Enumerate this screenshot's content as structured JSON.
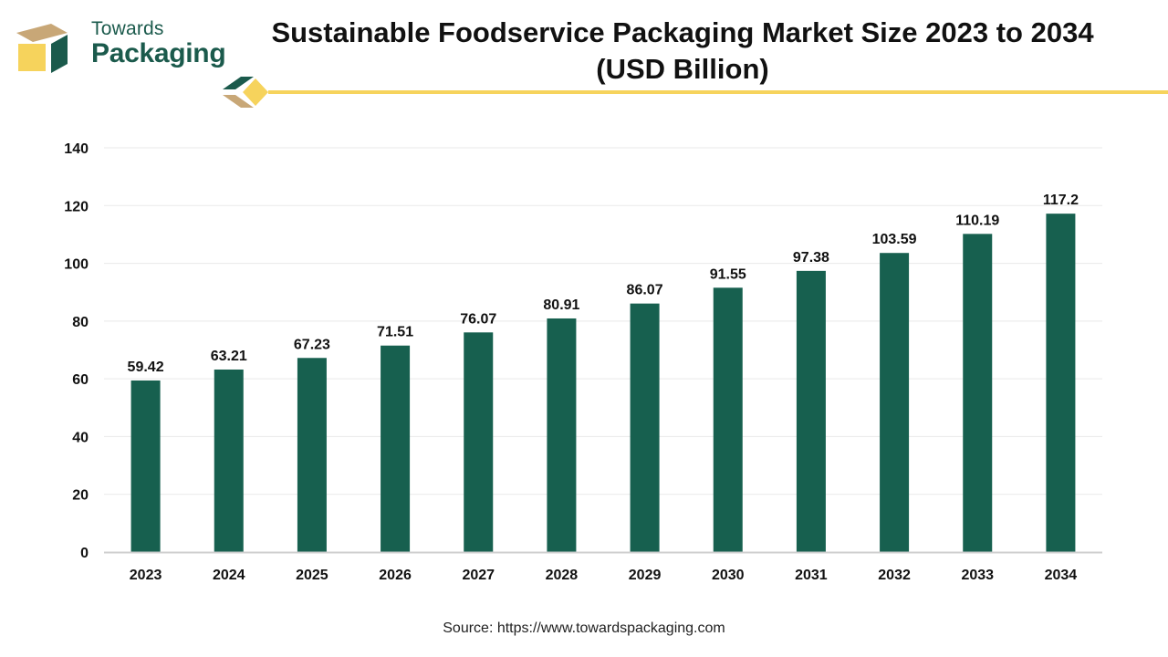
{
  "logo": {
    "line1": "Towards",
    "line2": "Packaging",
    "colors": {
      "green": "#1b5a4c",
      "gold": "#f6d35c",
      "tan": "#c8a777"
    }
  },
  "accent_line_color": "#f6d35c",
  "bar_color": "#17604f",
  "source": "Source: https://www.towardspackaging.com",
  "chart_data": {
    "type": "bar",
    "title": "Sustainable Foodservice Packaging Market Size 2023 to 2034 (USD Billion)",
    "title_lines": [
      "Sustainable Foodservice Packaging Market Size 2023 to 2034",
      "(USD Billion)"
    ],
    "xlabel": "",
    "ylabel": "",
    "categories": [
      "2023",
      "2024",
      "2025",
      "2026",
      "2027",
      "2028",
      "2029",
      "2030",
      "2031",
      "2032",
      "2033",
      "2034"
    ],
    "values": [
      59.42,
      63.21,
      67.23,
      71.51,
      76.07,
      80.91,
      86.07,
      91.55,
      97.38,
      103.59,
      110.19,
      117.2
    ],
    "value_labels": [
      "59.42",
      "63.21",
      "67.23",
      "71.51",
      "76.07",
      "80.91",
      "86.07",
      "91.55",
      "97.38",
      "103.59",
      "110.19",
      "117.2"
    ],
    "ylim": [
      0,
      140
    ],
    "yticks": [
      0,
      20,
      40,
      60,
      80,
      100,
      120,
      140
    ],
    "grid": true,
    "legend": "none"
  }
}
